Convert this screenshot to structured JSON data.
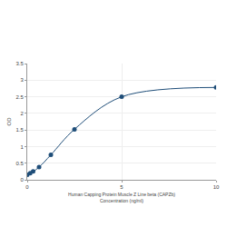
{
  "chart_data": {
    "type": "line",
    "x_label": "Human Capping Protein Muscle Z Line beta (CAPZb)\nConcentration (ng/ml)",
    "y_label": "OD",
    "x": [
      0,
      0.156,
      0.312,
      0.625,
      1.25,
      2.5,
      5,
      10
    ],
    "values": [
      0.15,
      0.2,
      0.25,
      0.38,
      0.75,
      1.52,
      2.5,
      2.78
    ],
    "color": "#1f4e79",
    "marker": "circle",
    "line_style": "solid",
    "xlim": [
      0,
      10
    ],
    "xticks": [
      0,
      5,
      10
    ],
    "ylim": [
      0,
      3.5
    ],
    "yticks": [
      0,
      0.5,
      1,
      1.5,
      2,
      2.5,
      3,
      3.5
    ],
    "grid": true
  }
}
